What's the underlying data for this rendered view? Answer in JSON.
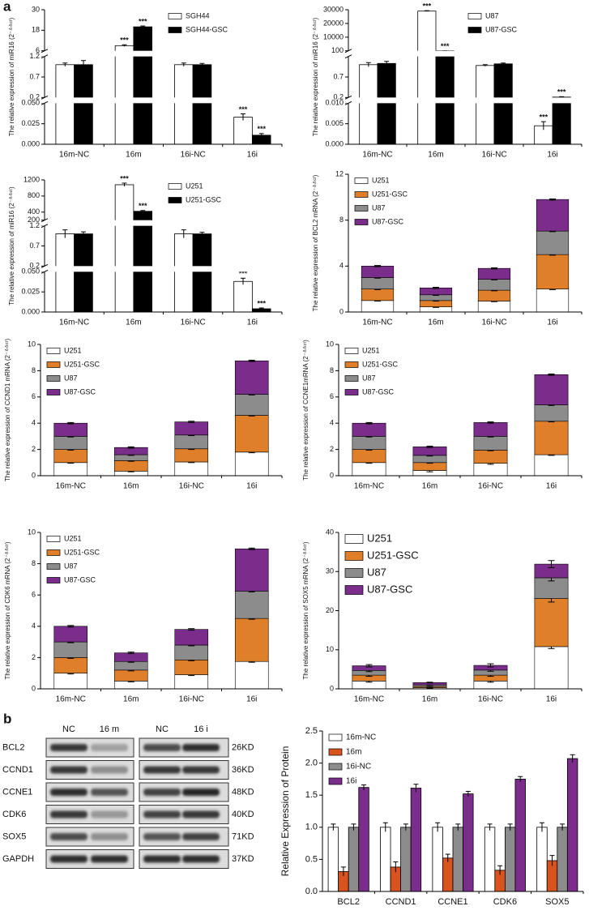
{
  "panel_labels": [
    "a",
    "b"
  ],
  "chart_data": [
    {
      "type": "bar",
      "ylabel": "The relative expression of miR16 (2⁻ᐞᐞᶜᵗ)",
      "categories": [
        "16m-NC",
        "16m",
        "16i-NC",
        "16i"
      ],
      "y_segments": [
        {
          "ylim": [
            0,
            0.05
          ],
          "yticks": [
            {
              "value": 0,
              "label": "0.000"
            },
            {
              "value": 0.025,
              "label": "0.025"
            },
            {
              "value": 0.05,
              "label": "0.050"
            }
          ]
        },
        {
          "ylim": [
            0.2,
            1.2
          ],
          "yticks": [
            0.2,
            0.7,
            1.2
          ]
        },
        {
          "ylim": [
            6,
            30
          ],
          "yticks": [
            6,
            18,
            30
          ]
        }
      ],
      "legend": "upper right",
      "series": [
        {
          "name": "SGH44",
          "color": "#ffffff",
          "values": [
            1.0,
            9.0,
            1.0,
            0.033
          ],
          "errors": [
            0.04,
            0.5,
            0.04,
            0.004
          ],
          "significance": [
            null,
            "***",
            null,
            "***"
          ]
        },
        {
          "name": "SGH44-GSC",
          "color": "#000000",
          "values": [
            1.0,
            20,
            1.0,
            0.011
          ],
          "errors": [
            0.1,
            0.5,
            0.03,
            0.002
          ],
          "significance": [
            null,
            "***",
            null,
            "***"
          ]
        }
      ]
    },
    {
      "type": "bar",
      "ylabel": "The relative expression of miR16 (2⁻ᐞᐞᶜᵗ)",
      "categories": [
        "16m-NC",
        "16m",
        "16i-NC",
        "16i"
      ],
      "y_segments": [
        {
          "ylim": [
            0,
            0.01
          ],
          "yticks": [
            {
              "value": 0,
              "label": "0.000"
            },
            {
              "value": 0.005,
              "label": "0.005"
            },
            {
              "value": 0.01,
              "label": "0.010"
            }
          ]
        },
        {
          "ylim": [
            0.2,
            1.2
          ],
          "yticks": [
            0.2,
            0.7
          ]
        },
        {
          "ylim": [
            100,
            30000
          ],
          "yticks": [
            100,
            10000,
            20000,
            30000
          ]
        }
      ],
      "legend": "upper right",
      "series": [
        {
          "name": "U87",
          "color": "#ffffff",
          "values": [
            1.0,
            29000,
            0.98,
            0.0045
          ],
          "errors": [
            0.05,
            300,
            0.02,
            0.001
          ],
          "significance": [
            null,
            "***",
            null,
            "***"
          ]
        },
        {
          "name": "U87-GSC",
          "color": "#000000",
          "values": [
            1.03,
            120,
            1.02,
            0.21
          ],
          "errors": [
            0.05,
            20,
            0.02,
            0.01
          ],
          "significance": [
            null,
            "***",
            null,
            "***"
          ]
        }
      ]
    },
    {
      "type": "bar",
      "ylabel": "The relative expression of miR16 (2⁻ᐞᐞᶜᵗ)",
      "categories": [
        "16m-NC",
        "16m",
        "16i-NC",
        "16i"
      ],
      "y_segments": [
        {
          "ylim": [
            0,
            0.05
          ],
          "yticks": [
            {
              "value": 0,
              "label": "0.000"
            },
            {
              "value": 0.025,
              "label": "0.025"
            },
            {
              "value": 0.05,
              "label": "0.050"
            }
          ]
        },
        {
          "ylim": [
            0.2,
            1.2
          ],
          "yticks": [
            0.2,
            0.7,
            1.2
          ]
        },
        {
          "ylim": [
            200,
            1200
          ],
          "yticks": [
            200,
            400,
            800,
            1200
          ]
        }
      ],
      "legend": "upper right",
      "series": [
        {
          "name": "U251",
          "color": "#ffffff",
          "values": [
            1.0,
            1080,
            1.0,
            0.038
          ],
          "errors": [
            0.1,
            40,
            0.1,
            0.004
          ],
          "significance": [
            null,
            "***",
            null,
            "***"
          ]
        },
        {
          "name": "U251-GSC",
          "color": "#000000",
          "values": [
            1.0,
            420,
            1.0,
            0.004
          ],
          "errors": [
            0.05,
            20,
            0.04,
            0.001
          ],
          "significance": [
            null,
            "***",
            null,
            "***"
          ]
        }
      ]
    },
    {
      "type": "stacked_bar",
      "ylabel": "The relative expression of BCL2 mRNA (2⁻ᐞᐞᶜᵗ)",
      "categories": [
        "16m-NC",
        "16m",
        "16i-NC",
        "16i"
      ],
      "ylim": [
        0,
        12
      ],
      "yticks": [
        0,
        4,
        8,
        12
      ],
      "legend": "upper left",
      "series": [
        {
          "name": "U251",
          "color": "#ffffff",
          "values": [
            1,
            0.45,
            0.95,
            2
          ],
          "errors": [
            0.05,
            0.05,
            0.05,
            0.05
          ]
        },
        {
          "name": "U251-GSC",
          "color": "#e07f2a",
          "values": [
            1,
            0.55,
            0.95,
            3
          ],
          "errors": [
            0.05,
            0.05,
            0.05,
            0.05
          ]
        },
        {
          "name": "U87",
          "color": "#8c8c8c",
          "values": [
            1,
            0.5,
            0.95,
            2.05
          ],
          "errors": [
            0.05,
            0.05,
            0.05,
            0.05
          ]
        },
        {
          "name": "U87-GSC",
          "color": "#7b2d8b",
          "values": [
            1,
            0.6,
            0.95,
            2.75
          ],
          "errors": [
            0.05,
            0.05,
            0.05,
            0.05
          ]
        }
      ]
    },
    {
      "type": "stacked_bar",
      "ylabel": "The relative expression of CCND1 mRNA (2⁻ᐞᐞᶜᵗ)",
      "categories": [
        "16m-NC",
        "16m",
        "16i-NC",
        "16i"
      ],
      "ylim": [
        0,
        10
      ],
      "yticks": [
        0,
        2,
        4,
        6,
        8,
        10
      ],
      "legend": "upper left",
      "series": [
        {
          "name": "U251",
          "color": "#ffffff",
          "values": [
            1,
            0.35,
            1.05,
            1.8
          ],
          "errors": [
            0.05,
            0.05,
            0.05,
            0.05
          ]
        },
        {
          "name": "U251-GSC",
          "color": "#e07f2a",
          "values": [
            1,
            0.8,
            1.0,
            2.8
          ],
          "errors": [
            0.05,
            0.05,
            0.05,
            0.05
          ]
        },
        {
          "name": "U87",
          "color": "#8c8c8c",
          "values": [
            1,
            0.45,
            1.05,
            1.6
          ],
          "errors": [
            0.05,
            0.05,
            0.05,
            0.05
          ]
        },
        {
          "name": "U87-GSC",
          "color": "#7b2d8b",
          "values": [
            1,
            0.55,
            1.0,
            2.55
          ],
          "errors": [
            0.05,
            0.05,
            0.05,
            0.05
          ]
        }
      ]
    },
    {
      "type": "stacked_bar",
      "ylabel": "The relative expression of CCNE1mRNA (2⁻ᐞᐞᶜᵗ)",
      "categories": [
        "16m-NC",
        "16m",
        "16i-NC",
        "16i"
      ],
      "ylim": [
        0,
        10
      ],
      "yticks": [
        0,
        2,
        4,
        6,
        8,
        10
      ],
      "legend": "upper left",
      "series": [
        {
          "name": "U251",
          "color": "#ffffff",
          "values": [
            1,
            0.4,
            0.95,
            1.6
          ],
          "errors": [
            0.05,
            0.1,
            0.08,
            0.05
          ]
        },
        {
          "name": "U251-GSC",
          "color": "#e07f2a",
          "values": [
            1,
            0.6,
            1.0,
            2.55
          ],
          "errors": [
            0.05,
            0.05,
            0.05,
            0.05
          ]
        },
        {
          "name": "U87",
          "color": "#8c8c8c",
          "values": [
            1,
            0.55,
            1.05,
            1.25
          ],
          "errors": [
            0.05,
            0.05,
            0.05,
            0.05
          ]
        },
        {
          "name": "U87-GSC",
          "color": "#7b2d8b",
          "values": [
            1,
            0.65,
            1.05,
            2.3
          ],
          "errors": [
            0.05,
            0.05,
            0.05,
            0.05
          ]
        }
      ]
    },
    {
      "type": "stacked_bar",
      "ylabel": "The relative expression of CDK6 mRNA (2⁻ᐞᐞᶜᵗ)",
      "categories": [
        "16m-NC",
        "16m",
        "16i-NC",
        "16i"
      ],
      "ylim": [
        0,
        10
      ],
      "yticks": [
        0,
        2,
        4,
        6,
        8,
        10
      ],
      "legend": "upper left",
      "series": [
        {
          "name": "U251",
          "color": "#ffffff",
          "values": [
            1,
            0.5,
            0.9,
            1.75
          ],
          "errors": [
            0.05,
            0.05,
            0.05,
            0.05
          ]
        },
        {
          "name": "U251-GSC",
          "color": "#e07f2a",
          "values": [
            1,
            0.7,
            0.95,
            2.75
          ],
          "errors": [
            0.05,
            0.05,
            0.05,
            0.05
          ]
        },
        {
          "name": "U87",
          "color": "#8c8c8c",
          "values": [
            1,
            0.55,
            0.95,
            1.75
          ],
          "errors": [
            0.05,
            0.05,
            0.05,
            0.05
          ]
        },
        {
          "name": "U87-GSC",
          "color": "#7b2d8b",
          "values": [
            1,
            0.55,
            1.0,
            2.7
          ],
          "errors": [
            0.05,
            0.05,
            0.05,
            0.05
          ]
        }
      ]
    },
    {
      "type": "stacked_bar",
      "ylabel": "The relative expression of SOX5 mRNA (2⁻ᐞᐞᶜᵗ)",
      "categories": [
        "16m-NC",
        "16m",
        "16i-NC",
        "16i"
      ],
      "ylim": [
        0,
        40
      ],
      "yticks": [
        0,
        10,
        20,
        30,
        40
      ],
      "legend": "upper left",
      "series": [
        {
          "name": "U251",
          "color": "#ffffff",
          "values": [
            2,
            0.3,
            2,
            10.8
          ],
          "errors": [
            0.3,
            0.1,
            0.3,
            0.5
          ]
        },
        {
          "name": "U251-GSC",
          "color": "#e07f2a",
          "values": [
            1.5,
            0.3,
            1.5,
            12.3
          ],
          "errors": [
            0.3,
            0.1,
            0.3,
            0.9
          ]
        },
        {
          "name": "U87",
          "color": "#8c8c8c",
          "values": [
            1.2,
            0.4,
            1.3,
            5.3
          ],
          "errors": [
            0.3,
            0.1,
            0.3,
            0.8
          ]
        },
        {
          "name": "U87-GSC",
          "color": "#7b2d8b",
          "values": [
            1.2,
            0.6,
            1.2,
            3.5
          ],
          "errors": [
            0.3,
            0.1,
            0.4,
            0.9
          ]
        }
      ]
    },
    {
      "type": "bar",
      "ylabel": "Relative  Expression  of  Protein",
      "categories": [
        "BCL2",
        "CCND1",
        "CCNE1",
        "CDK6",
        "SOX5"
      ],
      "ylim": [
        0,
        2.5
      ],
      "yticks": [
        {
          "value": 0,
          "label": "0.0"
        },
        0.5,
        {
          "value": 1,
          "label": "1.0"
        },
        1.5,
        {
          "value": 2,
          "label": "2.0"
        },
        2.5
      ],
      "legend": "upper left",
      "series": [
        {
          "name": "16m-NC",
          "color": "#ffffff",
          "values": [
            1,
            1,
            1,
            1,
            1
          ],
          "errors": [
            0.05,
            0.07,
            0.07,
            0.05,
            0.07
          ]
        },
        {
          "name": "16m",
          "color": "#d9531e",
          "values": [
            0.31,
            0.38,
            0.52,
            0.33,
            0.48
          ],
          "errors": [
            0.07,
            0.08,
            0.06,
            0.07,
            0.08
          ]
        },
        {
          "name": "16i-NC",
          "color": "#8c8c8c",
          "values": [
            1,
            1,
            1,
            1,
            1
          ],
          "errors": [
            0.05,
            0.05,
            0.05,
            0.05,
            0.05
          ]
        },
        {
          "name": "16i",
          "color": "#7b2d8b",
          "values": [
            1.62,
            1.61,
            1.52,
            1.75,
            2.07
          ],
          "errors": [
            0.04,
            0.06,
            0.04,
            0.04,
            0.06
          ]
        }
      ]
    }
  ],
  "western_blot": {
    "columns": [
      "NC",
      "16 m",
      "NC",
      "16 i"
    ],
    "rows": [
      {
        "protein": "BCL2",
        "size": "26KD"
      },
      {
        "protein": "CCND1",
        "size": "36KD"
      },
      {
        "protein": "CCNE1",
        "size": "48KD"
      },
      {
        "protein": "CDK6",
        "size": "40KD"
      },
      {
        "protein": "SOX5",
        "size": "71KD"
      },
      {
        "protein": "GAPDH",
        "size": "37KD"
      }
    ]
  }
}
